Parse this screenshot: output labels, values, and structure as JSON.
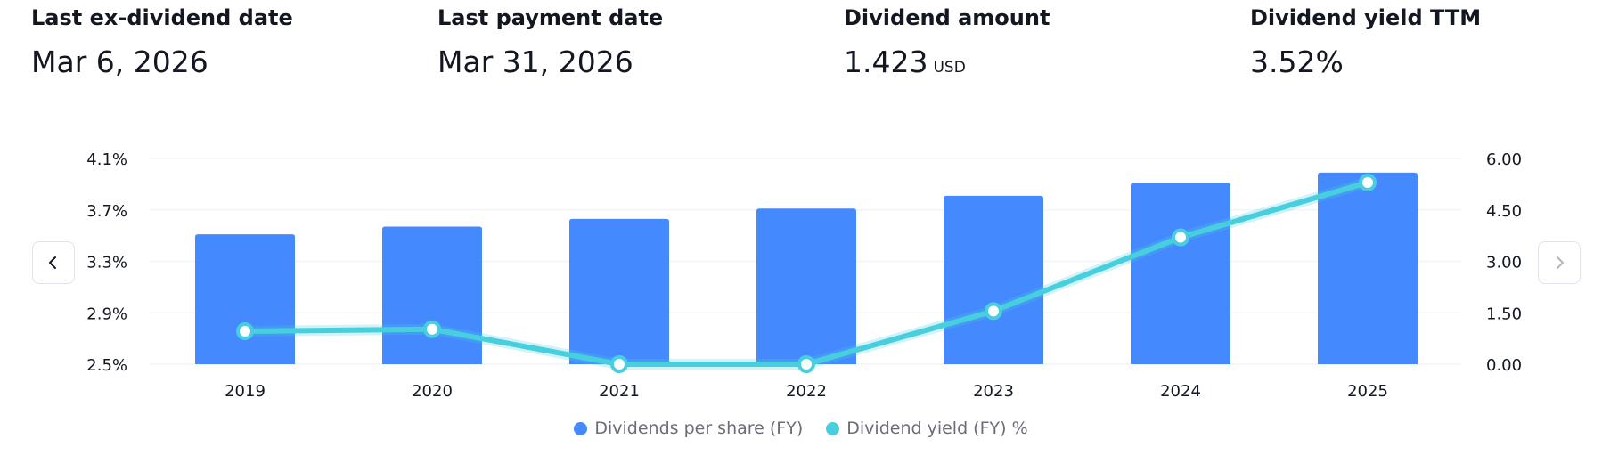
{
  "stats": [
    {
      "label": "Last ex-dividend date",
      "value": "Mar 6, 2026",
      "unit": ""
    },
    {
      "label": "Last payment date",
      "value": "Mar 31, 2026",
      "unit": ""
    },
    {
      "label": "Dividend amount",
      "value": "1.423",
      "unit": "USD"
    },
    {
      "label": "Dividend yield TTM",
      "value": "3.52%",
      "unit": ""
    }
  ],
  "nav": {
    "prev_icon": "chevron-left-icon",
    "next_icon": "chevron-right-icon"
  },
  "colors": {
    "bar": "#4589ff",
    "line": "#48cfde",
    "grid": "#f0f3fa",
    "text": "#131722",
    "legend_text": "#6a6d78"
  },
  "chart_data": {
    "type": "bar",
    "categories": [
      "2019",
      "2020",
      "2021",
      "2022",
      "2023",
      "2024",
      "2025"
    ],
    "series": [
      {
        "name": "Dividends per share (FY)",
        "type": "bar",
        "axis": "left",
        "values": [
          3.51,
          3.57,
          3.63,
          3.71,
          3.81,
          3.91,
          3.99
        ]
      },
      {
        "name": "Dividend yield (FY) %",
        "type": "line",
        "axis": "right",
        "values": [
          0.96,
          1.02,
          0.0,
          0.0,
          1.55,
          3.7,
          5.3
        ]
      }
    ],
    "left_axis": {
      "ticks": [
        "4.1%",
        "3.7%",
        "3.3%",
        "2.9%",
        "2.5%"
      ],
      "tick_values": [
        4.1,
        3.7,
        3.3,
        2.9,
        2.5
      ],
      "ylim": [
        2.5,
        4.1
      ]
    },
    "right_axis": {
      "ticks": [
        "6.00",
        "4.50",
        "3.00",
        "1.50",
        "0.00"
      ],
      "tick_values": [
        6.0,
        4.5,
        3.0,
        1.5,
        0.0
      ],
      "ylim": [
        0,
        6.0
      ]
    },
    "grid": true,
    "legend_position": "bottom-center",
    "legend": [
      "Dividends per share (FY)",
      "Dividend yield (FY) %"
    ]
  }
}
